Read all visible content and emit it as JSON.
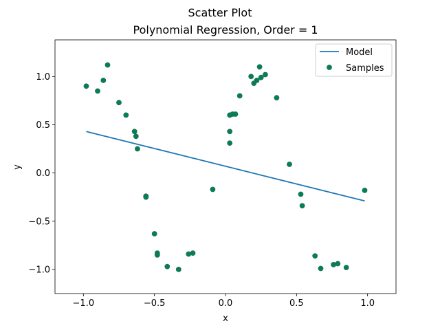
{
  "chart_data": {
    "type": "scatter",
    "title": "Scatter Plot",
    "subtitle": "Polynomial Regression, Order = 1",
    "xlabel": "x",
    "ylabel": "y",
    "xlim": [
      -1.2,
      1.2
    ],
    "ylim": [
      -1.25,
      1.38
    ],
    "grid": false,
    "legend_position": "top-right",
    "x_ticks": [
      -1.0,
      -0.5,
      0.0,
      0.5,
      1.0
    ],
    "x_tick_labels": [
      "−1.0",
      "−0.5",
      "0.0",
      "0.5",
      "1.0"
    ],
    "y_ticks": [
      -1.0,
      -0.5,
      0.0,
      0.5,
      1.0
    ],
    "y_tick_labels": [
      "−1.0",
      "−0.5",
      "0.0",
      "0.5",
      "1.0"
    ],
    "series": [
      {
        "name": "Model",
        "kind": "line",
        "color": "#1f77b4",
        "x": [
          -0.98,
          0.98
        ],
        "y": [
          0.43,
          -0.29
        ]
      },
      {
        "name": "Samples",
        "kind": "scatter",
        "color": "#008060",
        "edgecolor": "#2a6e3f",
        "x": [
          -0.98,
          -0.9,
          -0.86,
          -0.83,
          -0.75,
          -0.7,
          -0.64,
          -0.63,
          -0.62,
          -0.56,
          -0.56,
          -0.5,
          -0.48,
          -0.48,
          -0.41,
          -0.33,
          -0.26,
          -0.23,
          -0.09,
          0.03,
          0.03,
          0.03,
          0.05,
          0.07,
          0.1,
          0.18,
          0.2,
          0.22,
          0.24,
          0.25,
          0.28,
          0.36,
          0.45,
          0.53,
          0.54,
          0.63,
          0.67,
          0.76,
          0.79,
          0.85,
          0.98
        ],
        "y": [
          0.9,
          0.85,
          0.96,
          1.12,
          0.73,
          0.6,
          0.43,
          0.38,
          0.25,
          -0.24,
          -0.25,
          -0.63,
          -0.83,
          -0.85,
          -0.97,
          -1.0,
          -0.84,
          -0.83,
          -0.17,
          0.43,
          0.31,
          0.6,
          0.61,
          0.61,
          0.8,
          1.0,
          0.93,
          0.96,
          1.1,
          0.99,
          1.02,
          0.78,
          0.09,
          -0.22,
          -0.34,
          -0.86,
          -0.99,
          -0.95,
          -0.94,
          -0.98,
          -0.18
        ]
      }
    ]
  }
}
